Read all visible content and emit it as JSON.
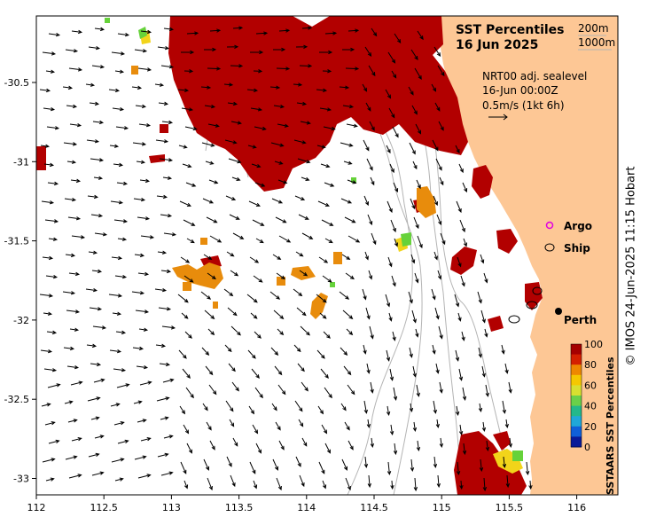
{
  "title": {
    "line1": "SST Percentiles",
    "line2": "16 Jun 2025"
  },
  "isobaths": {
    "shallow": "200m",
    "deep": "1000m"
  },
  "current_info": {
    "source": "NRT00 adj. sealevel",
    "time": "16-Jun 00:00Z",
    "scale": "0.5m/s (1kt 6h)"
  },
  "legend": {
    "argo": "Argo",
    "ship": "Ship"
  },
  "place": "Perth",
  "colorbar": {
    "title": "SSTAARS SST Percentiles",
    "ticks": [
      "100",
      "80",
      "60",
      "40",
      "20",
      "0"
    ],
    "colors": [
      "#a50000",
      "#d42000",
      "#ee8800",
      "#f5c800",
      "#d8e030",
      "#6ad04a",
      "#24b88a",
      "#20a8d8",
      "#1060d8",
      "#0a1a98"
    ]
  },
  "colors": {
    "land": "#fdc795",
    "hot": "#b20000",
    "warm": "#e88c0c",
    "mild": "#f2d41a",
    "green": "#66d23a",
    "isobath": "#b4b4b4"
  },
  "axes": {
    "lon_ticks": [
      "112",
      "112.5",
      "113",
      "113.5",
      "114",
      "114.5",
      "115",
      "115.5",
      "116"
    ],
    "lat_ticks": [
      "-30.5",
      "-31",
      "-31.5",
      "-32",
      "-32.5",
      "-33"
    ]
  },
  "copyright": "© IMOS 24-Jun-2025 11:15 Hobart"
}
